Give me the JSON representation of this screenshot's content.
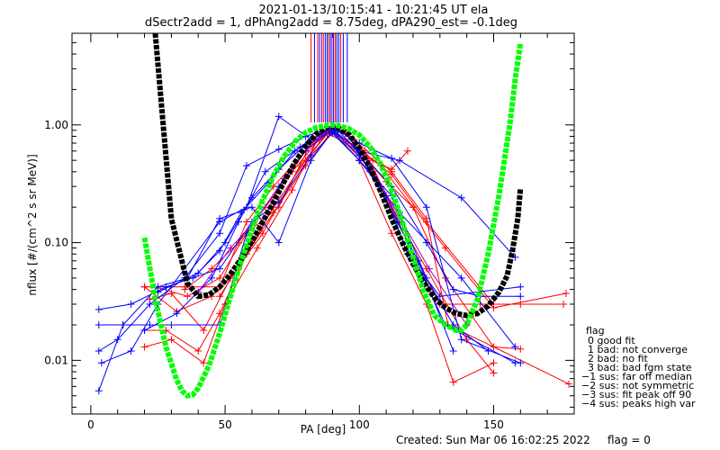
{
  "chart_data": {
    "type": "line",
    "title": "2021-01-13/10:15:41 - 10:21:45 UT ela",
    "subtitle": "dSectr2add = 1, dPhAng2add = 8.75deg, dPA290_est=  -0.1deg",
    "xlabel": "PA [deg]",
    "ylabel": "nflux [#/(cm^2 s sr MeV)]",
    "xlim": [
      -7,
      180
    ],
    "ylim": [
      0.0035,
      6.0
    ],
    "yscale": "log",
    "xticks": [
      0,
      50,
      100,
      150
    ],
    "yticks": [
      {
        "v": 0.01,
        "l": "0.01"
      },
      {
        "v": 0.1,
        "l": "0.10"
      },
      {
        "v": 1.0,
        "l": "1.00"
      }
    ],
    "colors": {
      "red": "#ff0000",
      "blue": "#0000ff",
      "black": "#000000",
      "green": "#00ff00",
      "purple": "#a000c8"
    },
    "series": [
      {
        "color": "red",
        "x": [
          20,
          25,
          35,
          48,
          58,
          68,
          80,
          90,
          105,
          118,
          130,
          145,
          160
        ],
        "y": [
          0.042,
          0.042,
          0.042,
          0.042,
          0.15,
          0.3,
          0.6,
          0.92,
          0.4,
          0.1,
          0.03,
          0.03,
          0.03
        ]
      },
      {
        "color": "red",
        "x": [
          20,
          28,
          40,
          48,
          60,
          72,
          82,
          90,
          100,
          112,
          125,
          135,
          150
        ],
        "y": [
          0.018,
          0.018,
          0.012,
          0.025,
          0.1,
          0.35,
          0.7,
          0.88,
          0.5,
          0.12,
          0.03,
          0.0065,
          0.0095
        ]
      },
      {
        "color": "red",
        "x": [
          20,
          30,
          42,
          50,
          62,
          75,
          85,
          90,
          102,
          115,
          125,
          140,
          150
        ],
        "y": [
          0.013,
          0.015,
          0.0095,
          0.03,
          0.09,
          0.28,
          0.8,
          0.85,
          0.6,
          0.15,
          0.06,
          0.015,
          0.0078
        ]
      },
      {
        "color": "red",
        "x": [
          22,
          30,
          42,
          52,
          64,
          78,
          88,
          95,
          108,
          120,
          132,
          150,
          160
        ],
        "y": [
          0.033,
          0.037,
          0.018,
          0.05,
          0.12,
          0.45,
          0.85,
          0.7,
          0.45,
          0.2,
          0.05,
          0.013,
          0.0125
        ]
      },
      {
        "color": "red",
        "x": [
          20,
          32,
          45,
          55,
          68,
          80,
          90,
          98,
          112,
          125,
          133,
          150,
          178
        ],
        "y": [
          0.042,
          0.026,
          0.035,
          0.06,
          0.2,
          0.5,
          0.95,
          0.75,
          0.4,
          0.16,
          0.02,
          0.013,
          0.0063
        ]
      },
      {
        "color": "red",
        "x": [
          24,
          36,
          48,
          58,
          70,
          82,
          90,
          100,
          110,
          120,
          132,
          150,
          177
        ],
        "y": [
          0.042,
          0.035,
          0.05,
          0.12,
          0.2,
          0.7,
          0.9,
          0.6,
          0.33,
          0.2,
          0.09,
          0.028,
          0.037
        ]
      },
      {
        "color": "red",
        "x": [
          35,
          45,
          55,
          65,
          75,
          85,
          90,
          95,
          105,
          112,
          118
        ],
        "y": [
          0.04,
          0.06,
          0.1,
          0.2,
          0.4,
          0.75,
          0.95,
          0.85,
          0.5,
          0.42,
          0.6
        ]
      },
      {
        "color": "red",
        "x": [
          48,
          58,
          68,
          80,
          90,
          100,
          112,
          125,
          150,
          176
        ],
        "y": [
          0.035,
          0.08,
          0.18,
          0.45,
          0.9,
          0.62,
          0.38,
          0.15,
          0.03,
          0.03
        ]
      },
      {
        "color": "blue",
        "x": [
          3,
          12,
          22,
          30,
          48,
          58,
          70,
          80,
          90,
          100,
          112,
          125,
          135,
          145,
          160
        ],
        "y": [
          0.02,
          0.02,
          0.02,
          0.02,
          0.02,
          0.12,
          0.3,
          0.6,
          0.92,
          0.6,
          0.3,
          0.1,
          0.04,
          0.035,
          0.035
        ]
      },
      {
        "color": "blue",
        "x": [
          3,
          10,
          22,
          35,
          48,
          58,
          70,
          80,
          90,
          100,
          112,
          125,
          138,
          160
        ],
        "y": [
          0.012,
          0.015,
          0.03,
          0.05,
          0.12,
          0.45,
          0.62,
          0.8,
          0.95,
          0.7,
          0.52,
          0.2,
          0.015,
          0.0095
        ]
      },
      {
        "color": "blue",
        "x": [
          4,
          15,
          25,
          48,
          58,
          70,
          82,
          90,
          100,
          115,
          138,
          158
        ],
        "y": [
          0.0095,
          0.012,
          0.03,
          0.15,
          0.2,
          1.18,
          0.75,
          0.92,
          0.6,
          0.5,
          0.24,
          0.075
        ]
      },
      {
        "color": "blue",
        "x": [
          3,
          12,
          25,
          36,
          48,
          60,
          70,
          82,
          90,
          100,
          115,
          138,
          158
        ],
        "y": [
          0.0055,
          0.02,
          0.042,
          0.05,
          0.16,
          0.2,
          0.1,
          0.5,
          0.88,
          0.5,
          0.18,
          0.05,
          0.013
        ]
      },
      {
        "color": "blue",
        "x": [
          3,
          15,
          28,
          48,
          60,
          70,
          82,
          90,
          100,
          112,
          125,
          135,
          148
        ],
        "y": [
          0.027,
          0.03,
          0.042,
          0.06,
          0.15,
          0.22,
          0.55,
          0.85,
          0.5,
          0.25,
          0.05,
          0.02,
          0.012
        ]
      },
      {
        "color": "blue",
        "x": [
          20,
          32,
          45,
          55,
          65,
          78,
          88,
          92,
          98,
          108,
          118,
          130,
          160
        ],
        "y": [
          0.018,
          0.025,
          0.05,
          0.15,
          0.4,
          0.65,
          0.9,
          0.9,
          0.65,
          0.3,
          0.08,
          0.035,
          0.042
        ]
      },
      {
        "color": "blue",
        "x": [
          25,
          40,
          50,
          60,
          70,
          80,
          90,
          100,
          110,
          118,
          132,
          158
        ],
        "y": [
          0.038,
          0.055,
          0.1,
          0.24,
          0.42,
          0.68,
          0.9,
          0.55,
          0.25,
          0.1,
          0.02,
          0.0095
        ]
      },
      {
        "color": "blue",
        "x": [
          38,
          48,
          56,
          66,
          76,
          86,
          90,
          96,
          104,
          114,
          122,
          135
        ],
        "y": [
          0.05,
          0.085,
          0.18,
          0.32,
          0.6,
          0.85,
          0.92,
          0.8,
          0.4,
          0.15,
          0.07,
          0.012
        ]
      },
      {
        "color": "purple",
        "x": [
          40,
          52,
          62,
          72,
          80,
          88,
          90,
          96,
          104,
          114,
          126,
          140
        ],
        "y": [
          0.038,
          0.09,
          0.16,
          0.35,
          0.6,
          0.9,
          0.97,
          0.8,
          0.45,
          0.18,
          0.06,
          0.02
        ]
      }
    ],
    "vlines": {
      "x": [
        82,
        83.3,
        84.5,
        85.2,
        86,
        86.6,
        87.3,
        88,
        88.6,
        89.2,
        89.8,
        90.4,
        91,
        91.6,
        92.3,
        93,
        94,
        95.5
      ],
      "colors": [
        "red",
        "blue",
        "red",
        "blue",
        "purple",
        "red",
        "blue",
        "blue",
        "red",
        "blue",
        "purple",
        "blue",
        "red",
        "blue",
        "blue",
        "red",
        "blue",
        "blue"
      ],
      "ylow": 1.05
    },
    "fits": [
      {
        "name": "black",
        "color": "black",
        "x": [
          24,
          30,
          36,
          40,
          44,
          48,
          52,
          56,
          60,
          64,
          68,
          72,
          76,
          80,
          84,
          88,
          90,
          92,
          96,
          100,
          104,
          108,
          112,
          116,
          120,
          124,
          128,
          132,
          136,
          140,
          144,
          148,
          152,
          155,
          157,
          159,
          160
        ],
        "y": [
          6.0,
          0.16,
          0.045,
          0.035,
          0.036,
          0.042,
          0.054,
          0.073,
          0.102,
          0.15,
          0.22,
          0.33,
          0.48,
          0.66,
          0.84,
          0.95,
          0.97,
          0.95,
          0.84,
          0.63,
          0.43,
          0.27,
          0.16,
          0.1,
          0.066,
          0.046,
          0.034,
          0.028,
          0.025,
          0.024,
          0.025,
          0.029,
          0.038,
          0.052,
          0.085,
          0.16,
          0.29
        ]
      },
      {
        "name": "green",
        "color": "green",
        "x": [
          20,
          24,
          28,
          32,
          34,
          36,
          38,
          40,
          44,
          48,
          52,
          56,
          60,
          64,
          68,
          72,
          76,
          80,
          84,
          88,
          90,
          92,
          96,
          100,
          104,
          108,
          112,
          116,
          120,
          124,
          128,
          132,
          136,
          138,
          140,
          144,
          148,
          152,
          156,
          158,
          160
        ],
        "y": [
          0.11,
          0.033,
          0.013,
          0.0068,
          0.0055,
          0.005,
          0.0051,
          0.0058,
          0.009,
          0.017,
          0.035,
          0.07,
          0.13,
          0.23,
          0.37,
          0.54,
          0.72,
          0.86,
          0.95,
          0.99,
          1.0,
          0.99,
          0.93,
          0.82,
          0.65,
          0.46,
          0.28,
          0.15,
          0.075,
          0.038,
          0.024,
          0.02,
          0.018,
          0.018,
          0.02,
          0.033,
          0.08,
          0.25,
          1.0,
          2.4,
          5.0
        ]
      }
    ]
  },
  "legend": {
    "title": "flag",
    "items": [
      "0 good fit",
      "1 bad: not converge",
      "2 bad: no fit",
      "3 bad: bad fgm state",
      "−1 sus: far off median",
      "−2 sus: not symmetric",
      "−3 sus: fit peak off 90",
      "−4 sus: peaks high var"
    ]
  },
  "footer": {
    "created": "Created: Sun Mar 06 16:02:25 2022",
    "flag": "flag = 0"
  }
}
